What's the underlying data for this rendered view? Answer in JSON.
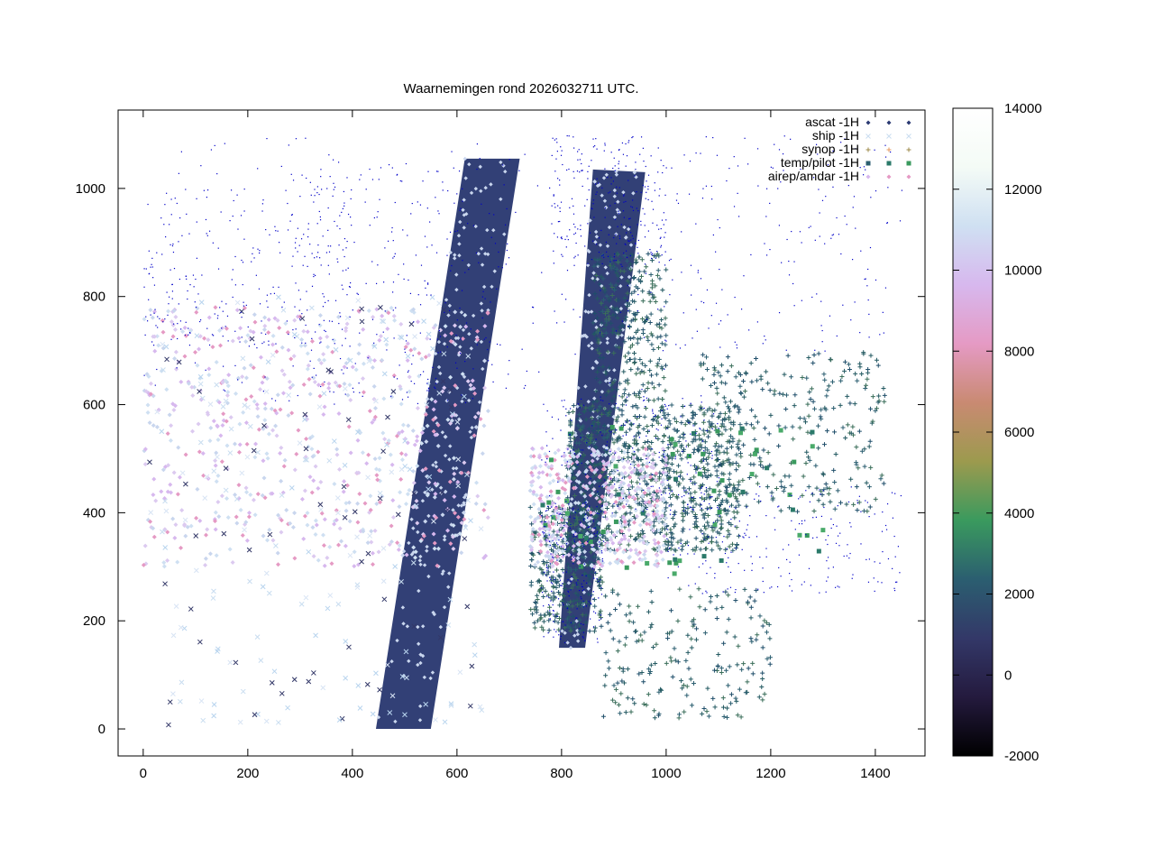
{
  "chart_data": {
    "type": "scatter",
    "title": "Waarnemingen rond 2026032711 UTC.",
    "xlabel": "",
    "ylabel": "",
    "xlim": [
      -48,
      1495
    ],
    "ylim": [
      -50,
      1145
    ],
    "x_ticks": [
      0,
      200,
      400,
      600,
      800,
      1000,
      1200,
      1400
    ],
    "x_tick_labels": [
      "0",
      "200",
      "400",
      "600",
      "800",
      "1000",
      "1200",
      "1400"
    ],
    "y_ticks": [
      0,
      200,
      400,
      600,
      800,
      1000
    ],
    "y_tick_labels": [
      "0",
      "200",
      "400",
      "600",
      "800",
      "1000"
    ],
    "grid": false,
    "legend_position": "top-right",
    "series": [
      {
        "name": "ascat -1H",
        "marker": "diamond",
        "color": "#2b3a72"
      },
      {
        "name": "ship -1H",
        "marker": "x",
        "color": "#b8d4ee"
      },
      {
        "name": "synop -1H",
        "marker": "plus",
        "color": "#9c8a4a"
      },
      {
        "name": "temp/pilot -1H",
        "marker": "square",
        "color": "#3a9a5e"
      },
      {
        "name": "airep/amdar -1H",
        "marker": "diamond",
        "color": "#e59ac4"
      }
    ],
    "swaths": [
      {
        "series": "ascat -1H",
        "polygon": [
          [
            445,
            0
          ],
          [
            550,
            0
          ],
          [
            720,
            1055
          ],
          [
            615,
            1055
          ]
        ]
      },
      {
        "series": "ascat -1H",
        "polygon": [
          [
            795,
            150
          ],
          [
            845,
            150
          ],
          [
            960,
            1030
          ],
          [
            860,
            1035
          ]
        ]
      }
    ],
    "dense_regions": [
      {
        "series": "synop -1H",
        "x": [
          810,
          1140
        ],
        "y": [
          330,
          600
        ],
        "count": 900
      },
      {
        "series": "synop -1H",
        "x": [
          740,
          880
        ],
        "y": [
          180,
          420
        ],
        "count": 350
      },
      {
        "series": "synop -1H",
        "x": [
          860,
          1000
        ],
        "y": [
          600,
          880
        ],
        "count": 300
      },
      {
        "series": "synop -1H",
        "x": [
          1060,
          1420
        ],
        "y": [
          400,
          700
        ],
        "count": 300
      },
      {
        "series": "synop -1H",
        "x": [
          880,
          1200
        ],
        "y": [
          20,
          260
        ],
        "count": 200
      },
      {
        "series": "airep/amdar -1H",
        "x": [
          740,
          1000
        ],
        "y": [
          300,
          520
        ],
        "count": 500
      },
      {
        "series": "airep/amdar -1H",
        "x": [
          0,
          660
        ],
        "y": [
          300,
          780
        ],
        "count": 700
      },
      {
        "series": "ship -1H",
        "x": [
          0,
          650
        ],
        "y": [
          0,
          800
        ],
        "count": 250
      },
      {
        "series": "temp/pilot -1H",
        "x": [
          760,
          1300
        ],
        "y": [
          280,
          560
        ],
        "count": 60
      }
    ],
    "colorbar": {
      "min": -2000,
      "max": 14000,
      "ticks": [
        -2000,
        0,
        2000,
        4000,
        6000,
        8000,
        10000,
        12000,
        14000
      ],
      "tick_labels": [
        "-2000",
        "0",
        "2000",
        "4000",
        "6000",
        "8000",
        "10000",
        "12000",
        "14000"
      ],
      "colors": [
        "#000000",
        "#241a3e",
        "#333868",
        "#2b5e70",
        "#3a9a5e",
        "#9c9a4e",
        "#c98a72",
        "#e59ac4",
        "#d7b8ee",
        "#cfe0f2",
        "#f4fbf6",
        "#ffffff"
      ]
    },
    "coastline_color": "#0000c8"
  }
}
